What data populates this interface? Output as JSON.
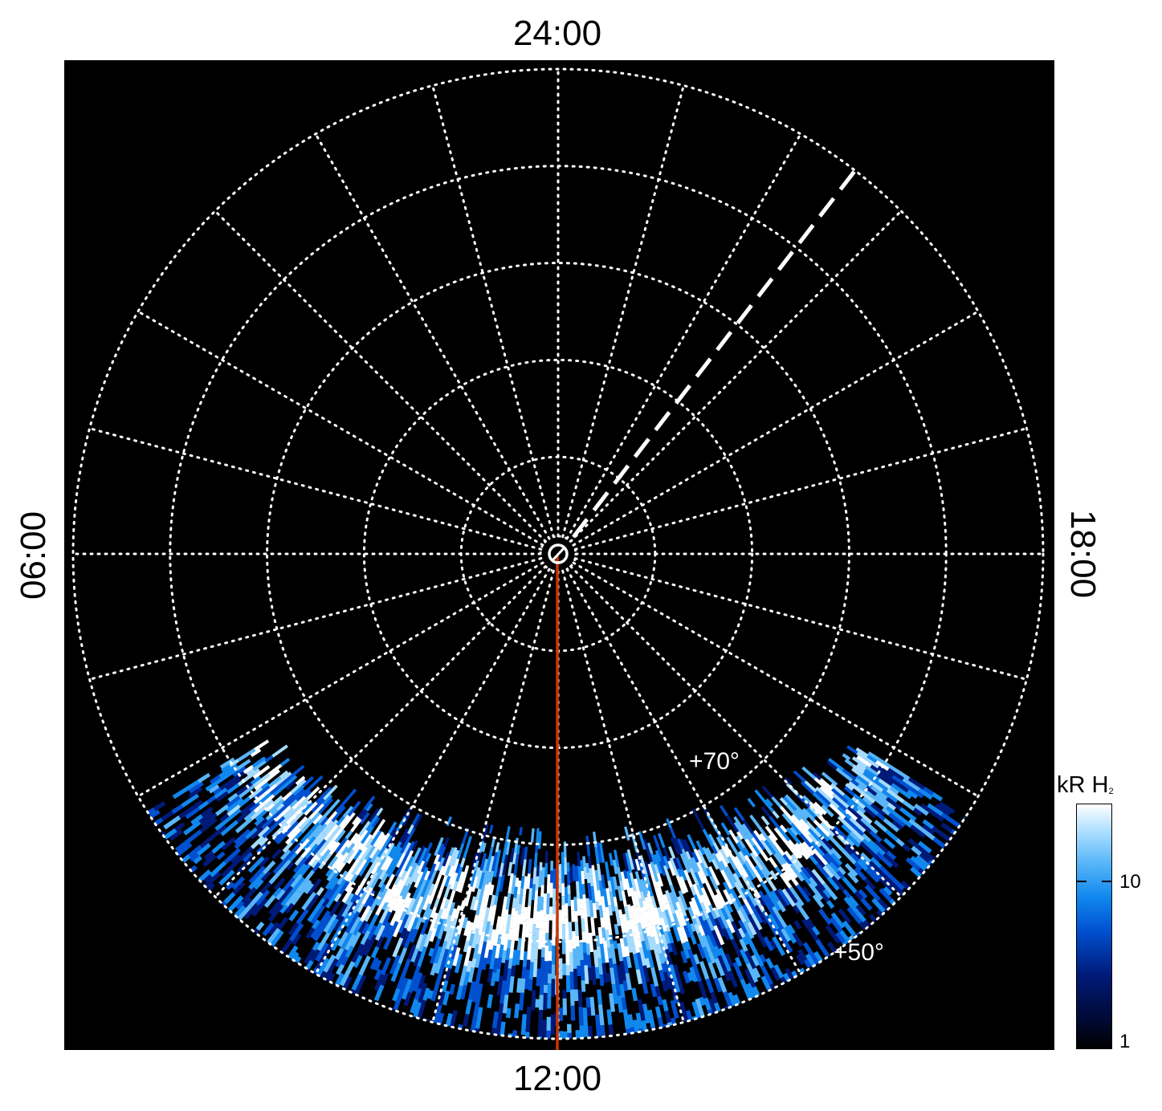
{
  "chart_data": {
    "type": "heatmap",
    "projection": "polar (north pole view, local time)",
    "local_time_labels": {
      "top": "24:00",
      "bottom": "12:00",
      "left": "06:00",
      "right": "18:00"
    },
    "latitude_labels": [
      "+70°",
      "+50°"
    ],
    "latitude_grid_deg": [
      80,
      70,
      60,
      50,
      40
    ],
    "meridian_spacing_deg": 15,
    "colorbar": {
      "title": "kR H",
      "title_subscript": "2",
      "scale": "log",
      "range": [
        1,
        30
      ],
      "ticks": [
        {
          "value": 10,
          "label": "10"
        },
        {
          "value": 1,
          "label": "1"
        }
      ]
    },
    "marked_lines": [
      {
        "style": "solid",
        "color": "#cc3300",
        "from_colat_deg": 0,
        "to_colat_deg": 60,
        "local_time": "12:00"
      },
      {
        "style": "dashed",
        "color": "#ffffff",
        "from_colat_deg": 2,
        "to_colat_deg": 44,
        "local_time": "21:00"
      }
    ],
    "emission_region": "dayside, colatitude ~30°–60°, local time ~08:00–16:00, brightest band near +60°",
    "grid": true
  },
  "colors": {
    "background": "#000000",
    "grid": "#ffffff",
    "noon_line": "#cc3300",
    "colormap": [
      "#000000",
      "#001a78",
      "#0050d0",
      "#1188ee",
      "#59b6f8",
      "#a6dcff",
      "#ffffff"
    ]
  }
}
